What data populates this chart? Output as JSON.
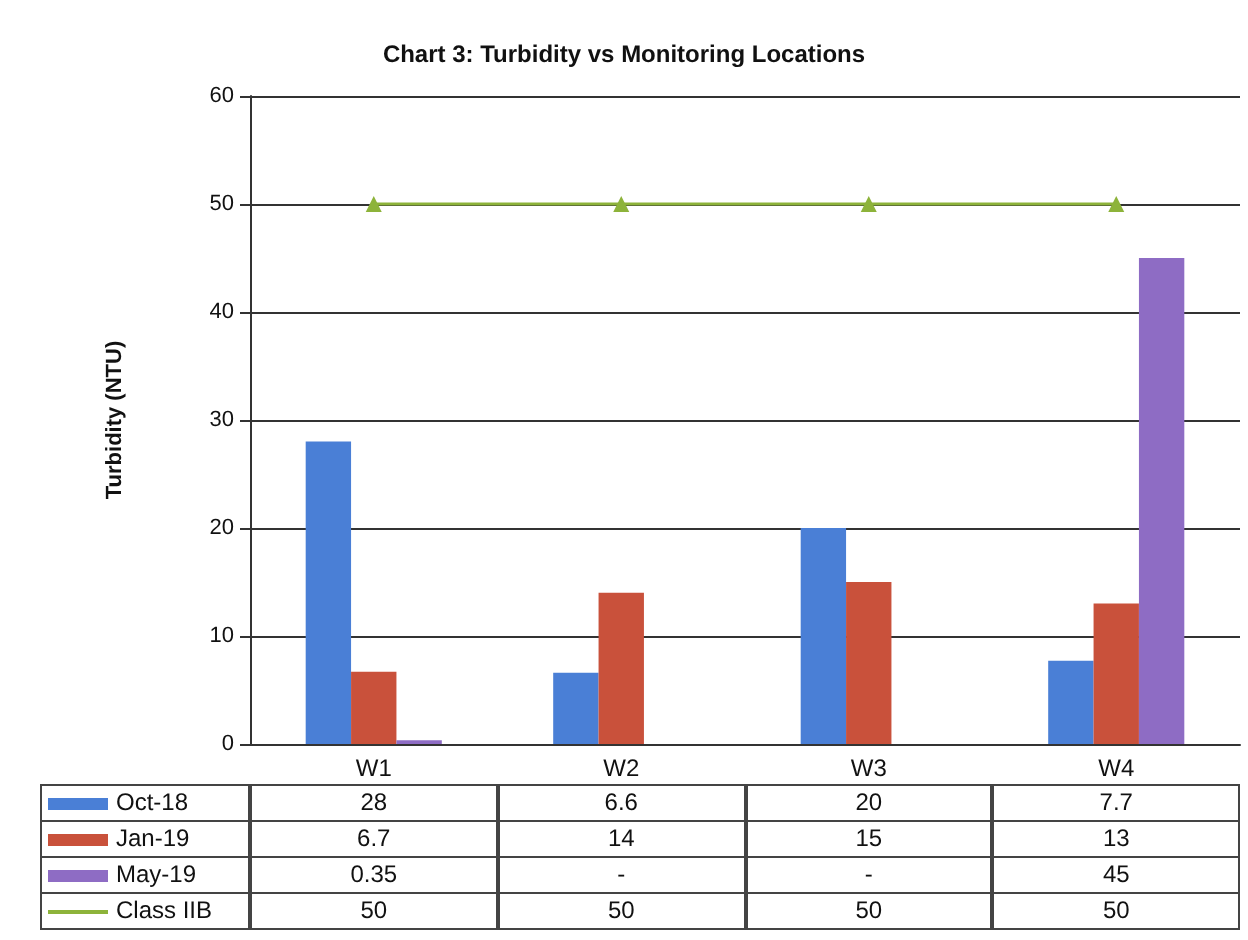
{
  "chart_data": {
    "type": "bar",
    "title": "Chart 3: Turbidity vs Monitoring Locations",
    "ylabel": "Turbidity (NTU)",
    "categories": [
      "W1",
      "W2",
      "W3",
      "W4"
    ],
    "series": [
      {
        "name": "Oct-18",
        "color": "#4a7fd6",
        "values": [
          28,
          6.6,
          20,
          7.7
        ],
        "value_labels": [
          "28",
          "6.6",
          "20",
          "7.7"
        ]
      },
      {
        "name": "Jan-19",
        "color": "#c9513b",
        "values": [
          6.7,
          14,
          15,
          13
        ],
        "value_labels": [
          "6.7",
          "14",
          "15",
          "13"
        ]
      },
      {
        "name": "May-19",
        "color": "#8e6cc4",
        "values": [
          0.35,
          null,
          null,
          45
        ],
        "value_labels": [
          "0.35",
          "-",
          "-",
          "45"
        ]
      },
      {
        "name": "Class IIB",
        "type": "line",
        "color": "#8db33a",
        "values": [
          50,
          50,
          50,
          50
        ],
        "value_labels": [
          "50",
          "50",
          "50",
          "50"
        ]
      }
    ],
    "marker": "triangle",
    "line_style": "solid",
    "ylim": [
      0,
      60
    ],
    "yticks": [
      0,
      10,
      20,
      30,
      40,
      50,
      60
    ],
    "grid": "y",
    "legend": "bottom"
  }
}
